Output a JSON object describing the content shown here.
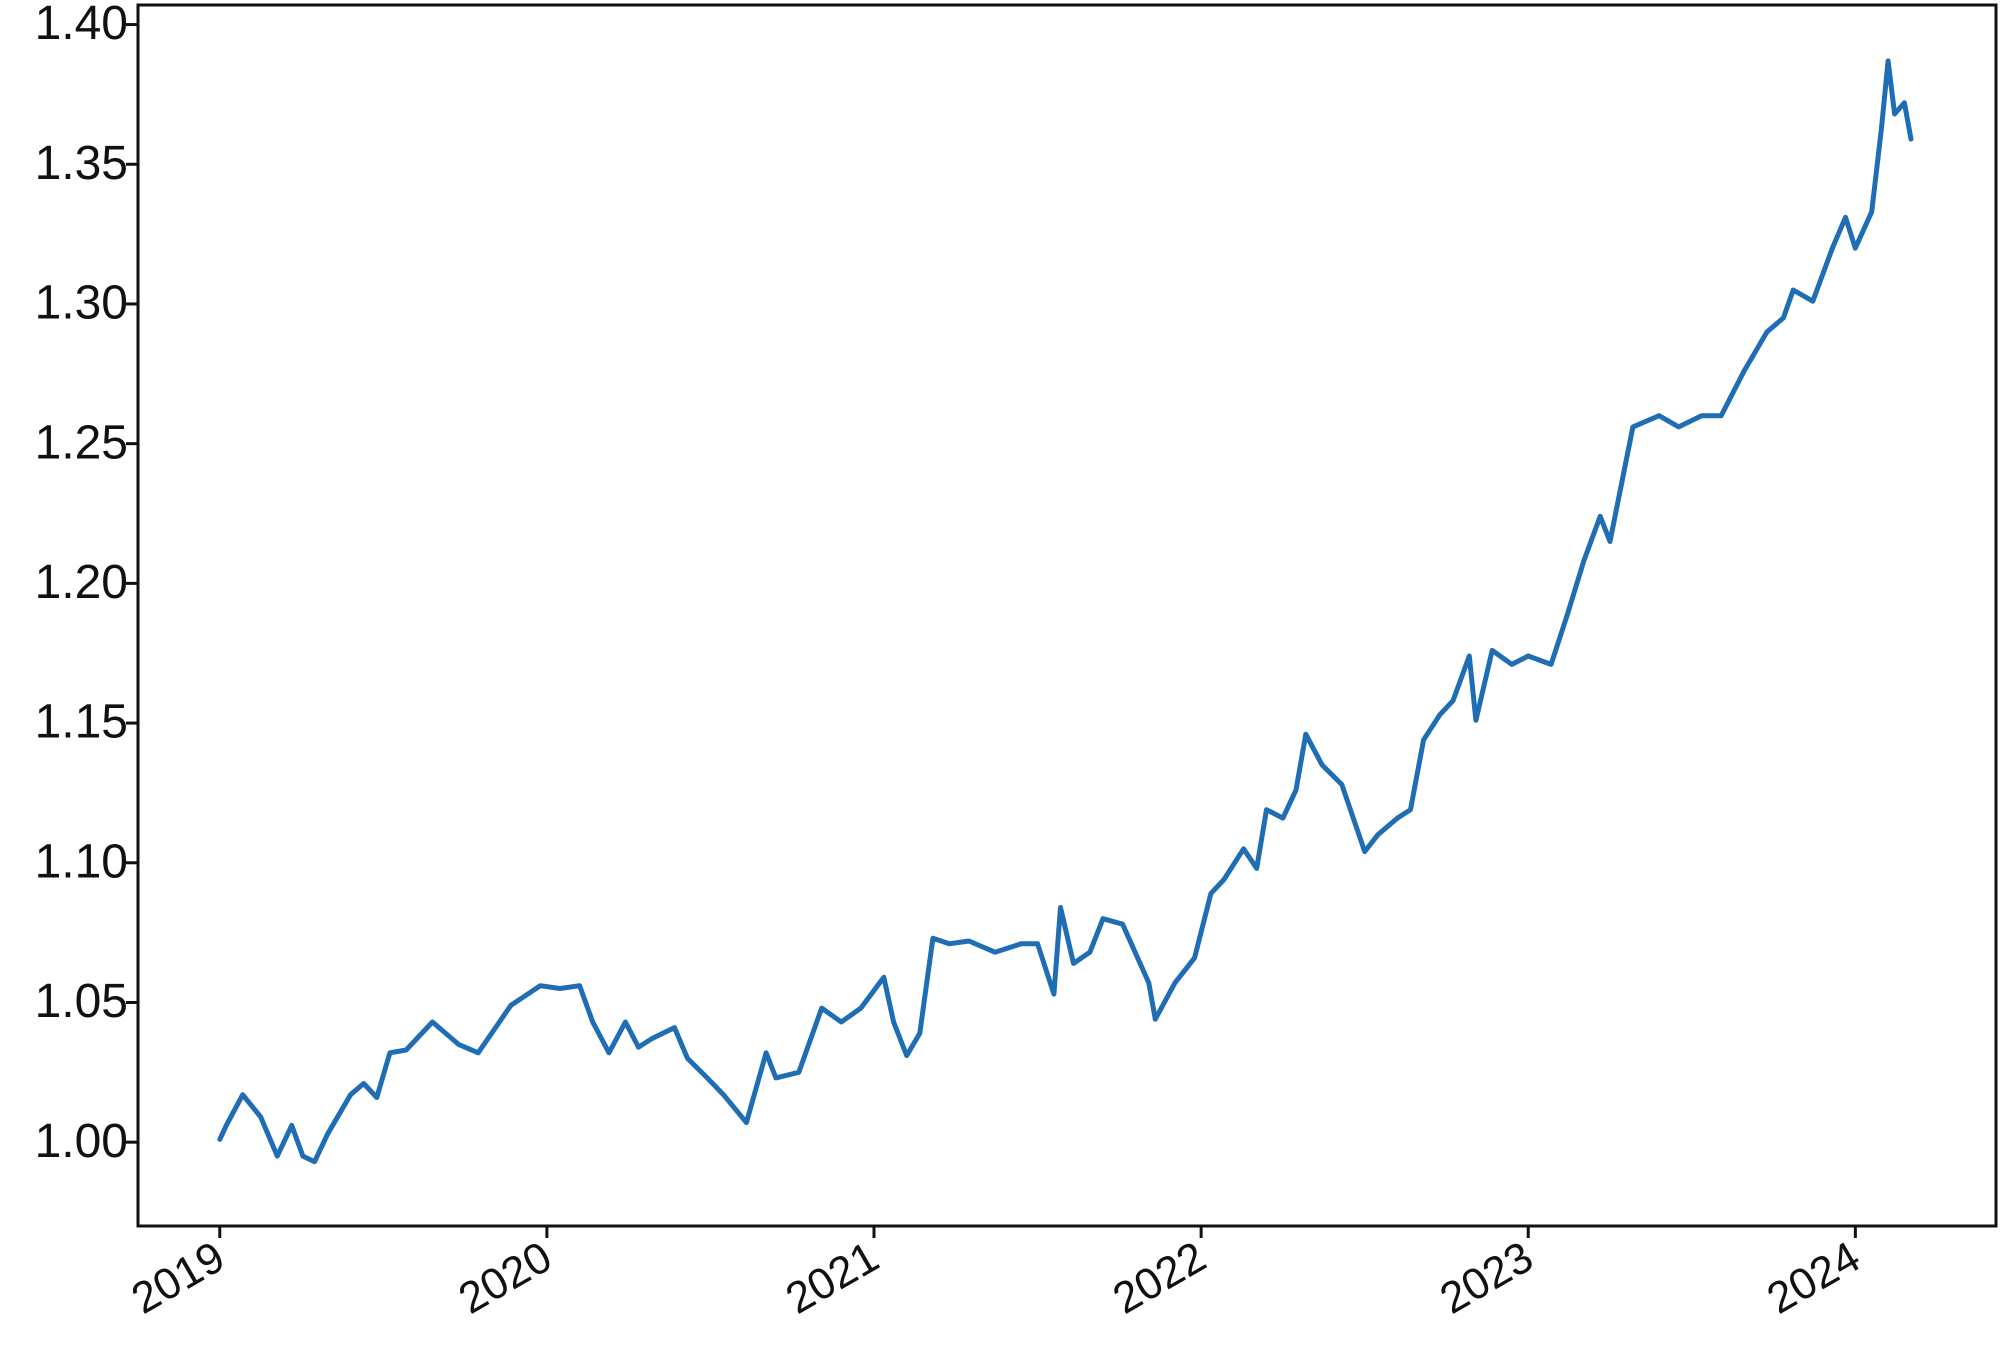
{
  "chart_data": {
    "type": "line",
    "x": [
      2019.0,
      2019.02,
      2019.07,
      2019.125,
      2019.176,
      2019.22,
      2019.254,
      2019.29,
      2019.33,
      2019.4,
      2019.44,
      2019.48,
      2019.52,
      2019.57,
      2019.65,
      2019.73,
      2019.79,
      2019.89,
      2019.98,
      2020.04,
      2020.1,
      2020.14,
      2020.19,
      2020.24,
      2020.28,
      2020.32,
      2020.39,
      2020.43,
      2020.49,
      2020.54,
      2020.61,
      2020.67,
      2020.7,
      2020.77,
      2020.84,
      2020.9,
      2020.96,
      2021.03,
      2021.06,
      2021.1,
      2021.14,
      2021.18,
      2021.23,
      2021.29,
      2021.37,
      2021.45,
      2021.5,
      2021.55,
      2021.57,
      2021.61,
      2021.66,
      2021.7,
      2021.76,
      2021.84,
      2021.86,
      2021.92,
      2021.98,
      2022.03,
      2022.07,
      2022.13,
      2022.17,
      2022.2,
      2022.25,
      2022.29,
      2022.32,
      2022.37,
      2022.43,
      2022.5,
      2022.54,
      2022.6,
      2022.64,
      2022.68,
      2022.73,
      2022.77,
      2022.82,
      2022.84,
      2022.89,
      2022.95,
      2023.0,
      2023.07,
      2023.12,
      2023.17,
      2023.22,
      2023.25,
      2023.32,
      2023.4,
      2023.46,
      2023.53,
      2023.59,
      2023.66,
      2023.73,
      2023.78,
      2023.81,
      2023.87,
      2023.93,
      2023.97,
      2024.0,
      2024.05,
      2024.08,
      2024.1,
      2024.12,
      2024.15,
      2024.17
    ],
    "values": [
      1.001,
      1.006,
      1.017,
      1.009,
      0.995,
      1.006,
      0.995,
      0.993,
      1.003,
      1.017,
      1.021,
      1.016,
      1.032,
      1.033,
      1.043,
      1.035,
      1.032,
      1.049,
      1.056,
      1.055,
      1.056,
      1.043,
      1.032,
      1.043,
      1.034,
      1.037,
      1.041,
      1.03,
      1.023,
      1.017,
      1.007,
      1.032,
      1.023,
      1.025,
      1.048,
      1.043,
      1.048,
      1.059,
      1.043,
      1.031,
      1.039,
      1.073,
      1.071,
      1.072,
      1.068,
      1.071,
      1.071,
      1.053,
      1.084,
      1.064,
      1.068,
      1.08,
      1.078,
      1.057,
      1.044,
      1.057,
      1.066,
      1.089,
      1.094,
      1.105,
      1.098,
      1.119,
      1.116,
      1.126,
      1.146,
      1.135,
      1.128,
      1.104,
      1.11,
      1.116,
      1.119,
      1.144,
      1.153,
      1.158,
      1.174,
      1.151,
      1.176,
      1.171,
      1.174,
      1.171,
      1.189,
      1.208,
      1.224,
      1.215,
      1.256,
      1.26,
      1.256,
      1.26,
      1.26,
      1.276,
      1.29,
      1.295,
      1.305,
      1.301,
      1.32,
      1.331,
      1.32,
      1.333,
      1.363,
      1.387,
      1.368,
      1.372,
      1.359
    ],
    "color": "#1f6db3",
    "xlim": [
      2018.75,
      2024.43
    ],
    "xticks": [
      2019,
      2020,
      2021,
      2022,
      2023,
      2024
    ],
    "ylim": [
      0.97,
      1.407
    ],
    "yticks": [
      {
        "value": 1.0,
        "label": "1.00"
      },
      {
        "value": 1.05,
        "label": "1.05"
      },
      {
        "value": 1.1,
        "label": "1.10"
      },
      {
        "value": 1.15,
        "label": "1.15"
      },
      {
        "value": 1.2,
        "label": "1.20"
      },
      {
        "value": 1.25,
        "label": "1.25"
      },
      {
        "value": 1.3,
        "label": "1.30"
      },
      {
        "value": 1.35,
        "label": "1.35"
      },
      {
        "value": 1.4,
        "label": "1.40"
      }
    ],
    "grid": false
  }
}
